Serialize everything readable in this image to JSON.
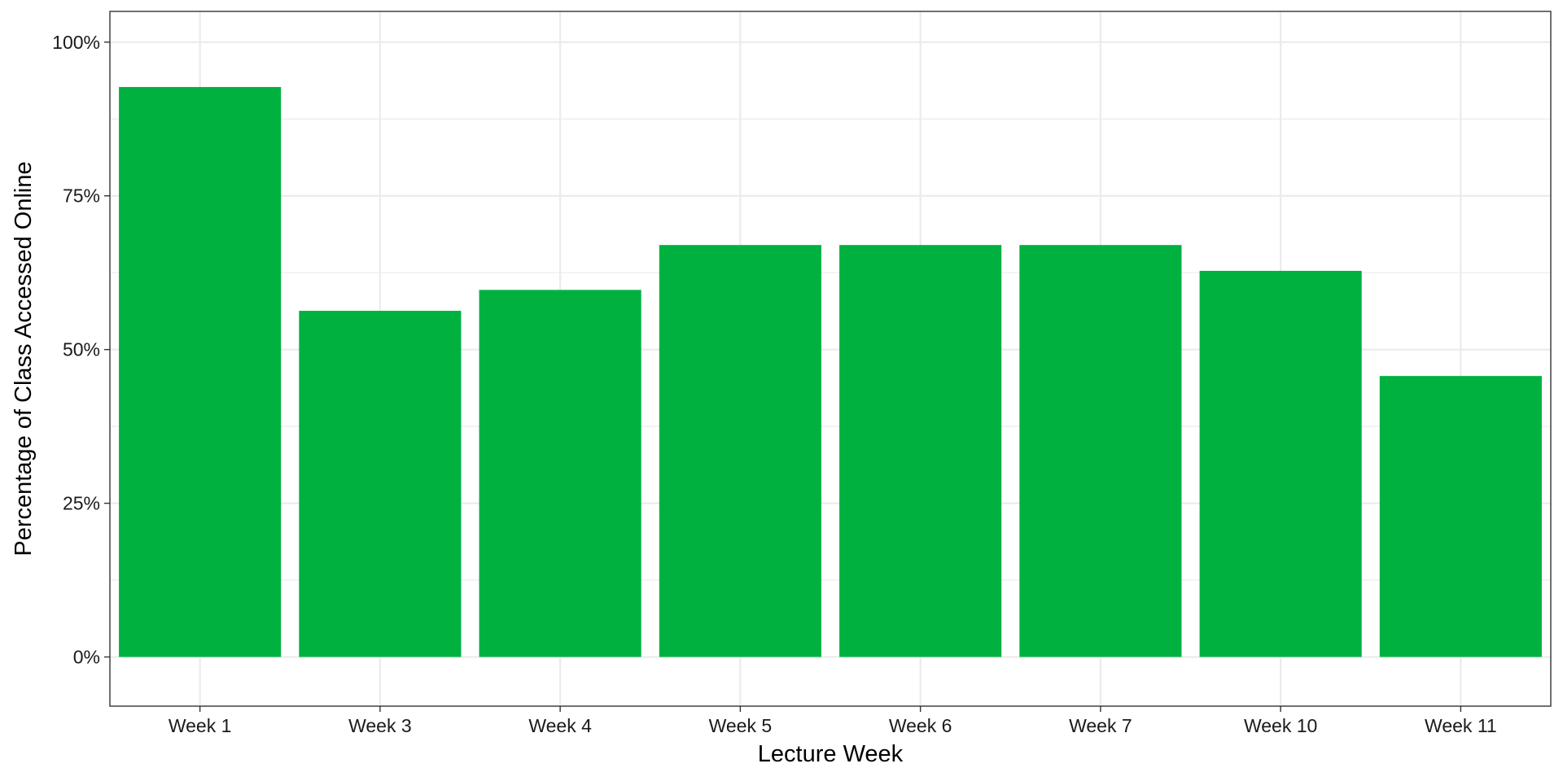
{
  "chart_data": {
    "type": "bar",
    "title": "",
    "xlabel": "Lecture Week",
    "ylabel": "Percentage of Class Accessed Online",
    "categories": [
      "Week 1",
      "Week 3",
      "Week 4",
      "Week 5",
      "Week 6",
      "Week 7",
      "Week 10",
      "Week 11"
    ],
    "values": [
      0.927,
      0.563,
      0.597,
      0.67,
      0.67,
      0.67,
      0.628,
      0.457
    ],
    "ylim": [
      -0.08,
      1.05
    ],
    "y_ticks": [
      0,
      0.25,
      0.5,
      0.75,
      1.0
    ],
    "y_tick_labels": [
      "0%",
      "25%",
      "50%",
      "75%",
      "100%"
    ],
    "y_format": "percent",
    "grid": true,
    "legend": "none",
    "colors": {
      "bar": "#00B140",
      "grid": "#ebebeb",
      "panel_border": "#333333",
      "text": "#1a1a1a"
    }
  }
}
